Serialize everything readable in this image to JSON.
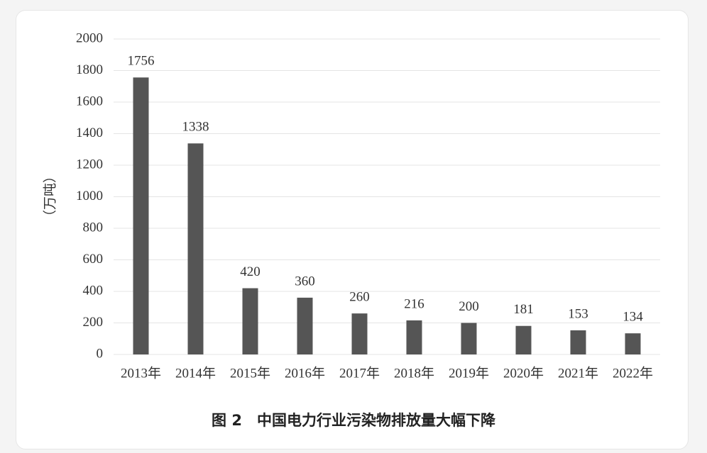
{
  "chart_data": {
    "type": "bar",
    "title": "图 2　中国电力行业污染物排放量大幅下降",
    "y_axis_label": "（万吨）",
    "categories": [
      "2013年",
      "2014年",
      "2015年",
      "2016年",
      "2017年",
      "2018年",
      "2019年",
      "2020年",
      "2021年",
      "2022年"
    ],
    "values": [
      1756,
      1338,
      420,
      360,
      260,
      216,
      200,
      181,
      153,
      134
    ],
    "color": "#555555",
    "ylim": [
      0,
      2000
    ],
    "yticks": [
      0,
      200,
      400,
      600,
      800,
      1000,
      1200,
      1400,
      1600,
      1800,
      2000
    ],
    "grid": true
  }
}
